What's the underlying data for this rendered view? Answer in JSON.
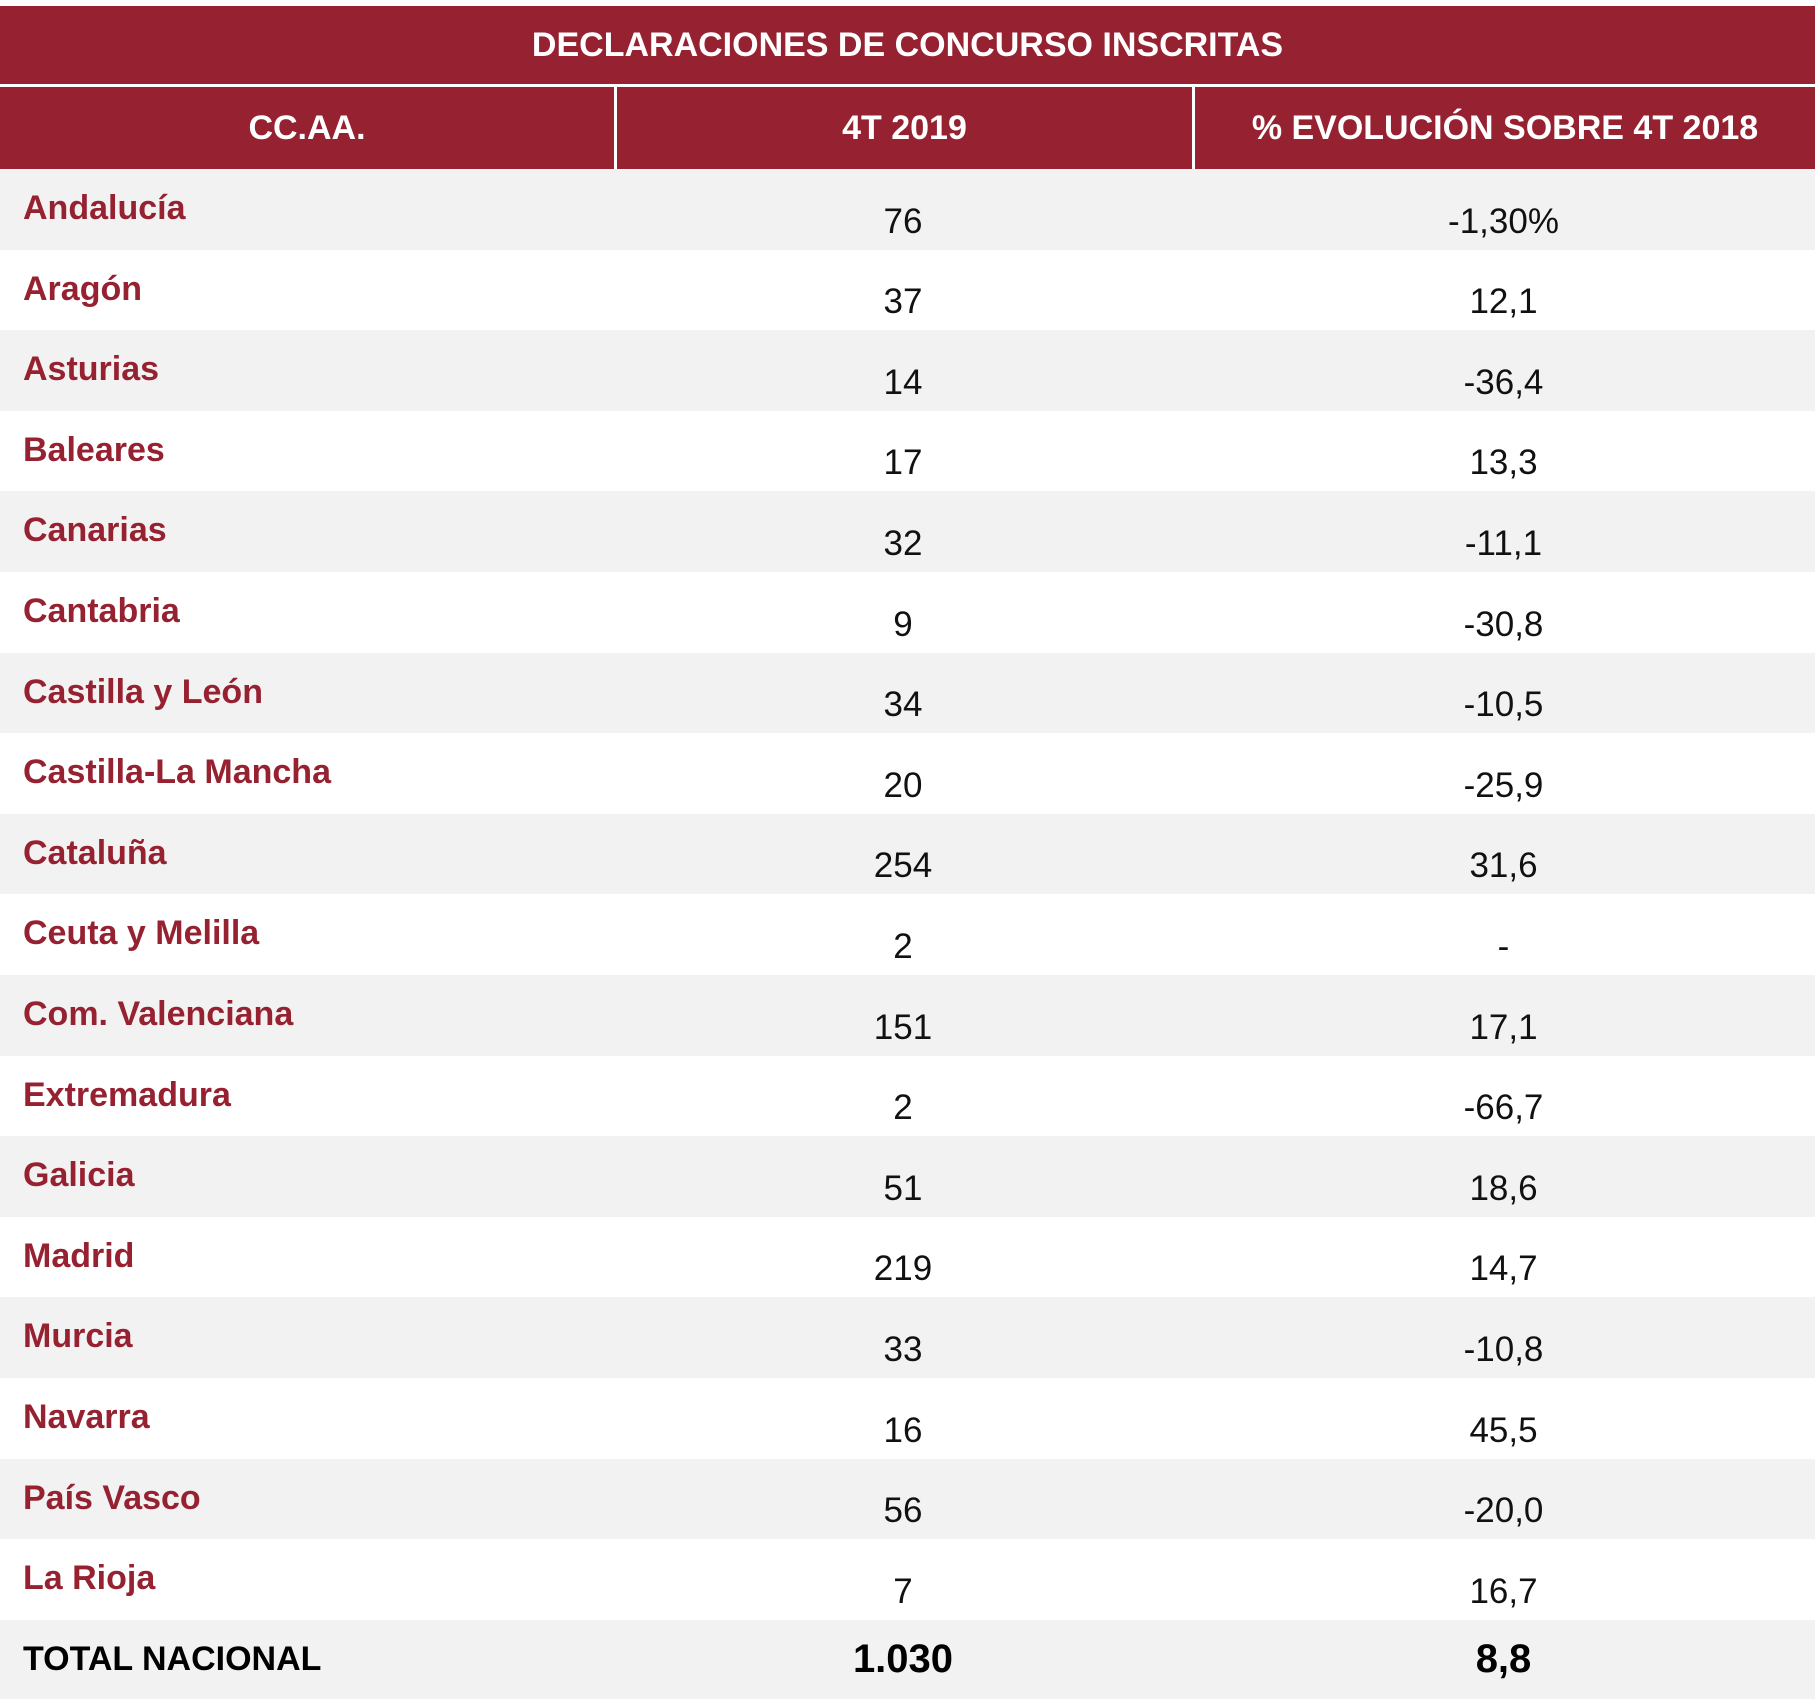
{
  "table": {
    "title": "DECLARACIONES DE CONCURSO INSCRITAS",
    "headers": [
      "CC.AA.",
      "4T 2019",
      "% EVOLUCIÓN SOBRE 4T 2018"
    ],
    "rows": [
      {
        "region": "Andalucía",
        "value": "76",
        "evolution": "-1,30%"
      },
      {
        "region": "Aragón",
        "value": "37",
        "evolution": "12,1"
      },
      {
        "region": "Asturias",
        "value": "14",
        "evolution": "-36,4"
      },
      {
        "region": "Baleares",
        "value": "17",
        "evolution": "13,3"
      },
      {
        "region": "Canarias",
        "value": "32",
        "evolution": "-11,1"
      },
      {
        "region": "Cantabria",
        "value": "9",
        "evolution": "-30,8"
      },
      {
        "region": "Castilla y León",
        "value": "34",
        "evolution": "-10,5"
      },
      {
        "region": "Castilla-La Mancha",
        "value": "20",
        "evolution": "-25,9"
      },
      {
        "region": "Cataluña",
        "value": "254",
        "evolution": "31,6"
      },
      {
        "region": "Ceuta y Melilla",
        "value": "2",
        "evolution": "-"
      },
      {
        "region": "Com. Valenciana",
        "value": "151",
        "evolution": "17,1"
      },
      {
        "region": "Extremadura",
        "value": "2",
        "evolution": "-66,7"
      },
      {
        "region": "Galicia",
        "value": "51",
        "evolution": "18,6"
      },
      {
        "region": "Madrid",
        "value": "219",
        "evolution": "14,7"
      },
      {
        "region": "Murcia",
        "value": "33",
        "evolution": "-10,8"
      },
      {
        "region": "Navarra",
        "value": "16",
        "evolution": "45,5"
      },
      {
        "region": "País Vasco",
        "value": "56",
        "evolution": "-20,0"
      },
      {
        "region": "La Rioja",
        "value": "7",
        "evolution": "16,7"
      }
    ],
    "total": {
      "label": "TOTAL NACIONAL",
      "value": "1.030",
      "evolution": "8,8"
    }
  },
  "colors": {
    "header_bg": "#962231",
    "row_shade": "#f2f2f2",
    "region_text": "#962231"
  }
}
